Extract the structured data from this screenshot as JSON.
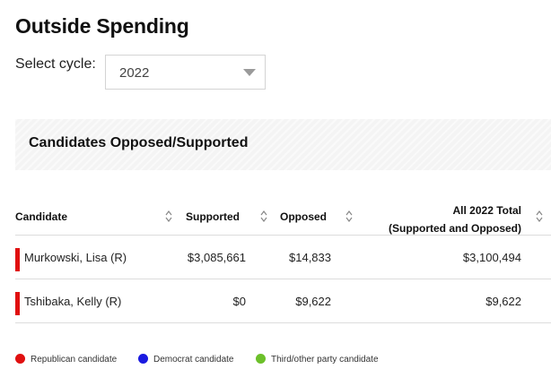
{
  "header": {
    "title": "Outside Spending"
  },
  "cycle": {
    "label": "Select cycle:",
    "selected": "2022"
  },
  "section": {
    "title": "Candidates Opposed/Supported"
  },
  "table": {
    "columns": {
      "candidate": "Candidate",
      "supported": "Supported",
      "opposed": "Opposed",
      "total_line1": "All 2022 Total",
      "total_line2": "(Supported and Opposed)"
    },
    "rows": [
      {
        "name": "Murkowski, Lisa (R)",
        "party": "Republican",
        "color": "#e01010",
        "supported": "$3,085,661",
        "opposed": "$14,833",
        "total": "$3,100,494"
      },
      {
        "name": "Tshibaka, Kelly (R)",
        "party": "Republican",
        "color": "#e01010",
        "supported": "$0",
        "opposed": "$9,622",
        "total": "$9,622"
      }
    ]
  },
  "legend": [
    {
      "label": "Republican candidate",
      "color": "#e01010"
    },
    {
      "label": "Democrat candidate",
      "color": "#1a1ae0"
    },
    {
      "label": "Third/other party candidate",
      "color": "#6cc02a"
    }
  ]
}
